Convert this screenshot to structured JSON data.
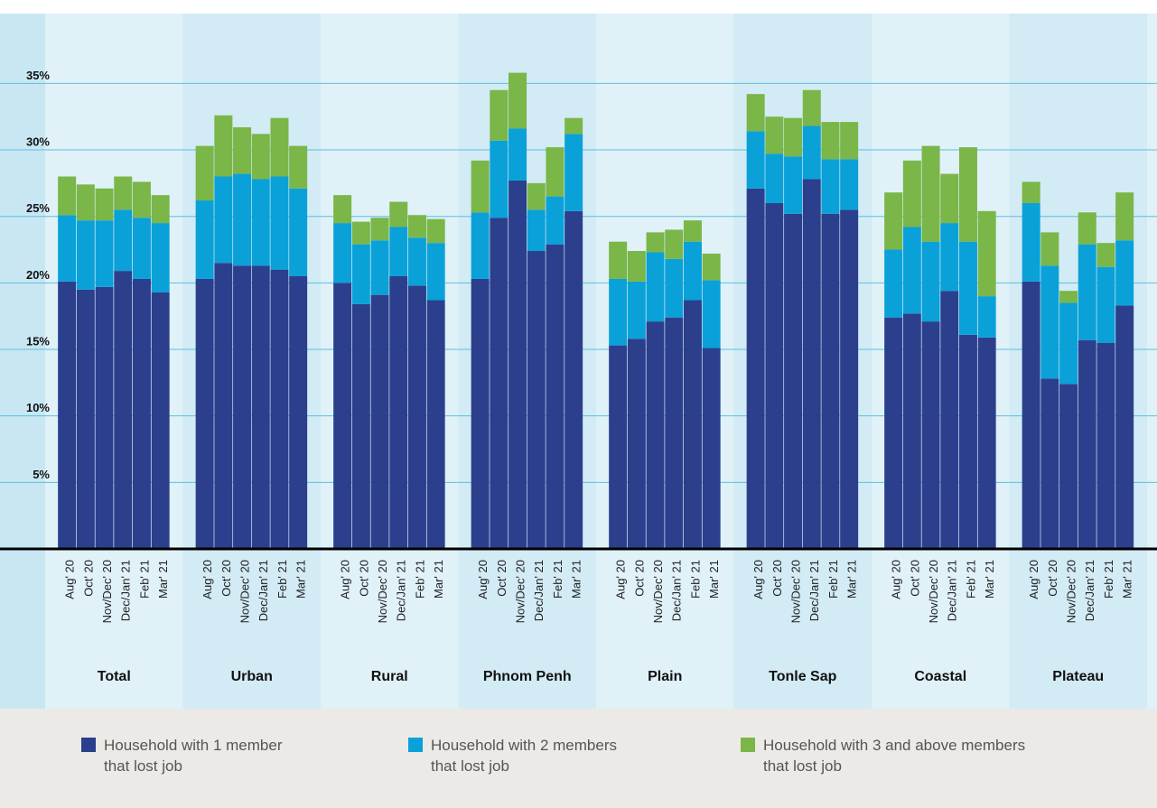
{
  "chart_data": {
    "type": "grouped-stacked-bar",
    "categories": [
      "Total",
      "Urban",
      "Rural",
      "Phnom Penh",
      "Plain",
      "Tonle Sap",
      "Coastal",
      "Plateau"
    ],
    "periods": [
      "Aug' 20",
      "Oct' 20",
      "Nov/Dec' 20",
      "Dec/Jan' 21",
      "Feb' 21",
      "Mar' 21"
    ],
    "series": [
      {
        "name": "Household with 1 member that lost job",
        "color": "#2b3f8c",
        "values": [
          [
            20.1,
            19.5,
            19.7,
            20.9,
            20.3,
            19.3
          ],
          [
            20.3,
            21.5,
            21.3,
            21.3,
            21.0,
            20.5
          ],
          [
            20.0,
            18.4,
            19.1,
            20.5,
            19.8,
            18.7
          ],
          [
            20.3,
            24.9,
            27.7,
            22.4,
            22.9,
            25.4
          ],
          [
            15.3,
            15.8,
            17.1,
            17.4,
            18.7,
            15.1
          ],
          [
            27.1,
            26.0,
            25.2,
            27.8,
            25.2,
            25.5
          ],
          [
            17.4,
            17.7,
            17.1,
            19.4,
            16.1,
            15.9
          ],
          [
            20.1,
            12.8,
            12.4,
            15.7,
            15.5,
            18.3
          ]
        ]
      },
      {
        "name": "Household with 2 members that lost job",
        "color": "#0aa1d9",
        "values": [
          [
            5.0,
            5.2,
            5.0,
            4.6,
            4.6,
            5.2
          ],
          [
            5.9,
            6.5,
            6.9,
            6.5,
            7.0,
            6.6
          ],
          [
            4.5,
            4.5,
            4.1,
            3.7,
            3.6,
            4.3
          ],
          [
            5.0,
            5.8,
            3.9,
            3.1,
            3.6,
            5.8
          ],
          [
            5.0,
            4.3,
            5.2,
            4.4,
            4.4,
            5.1
          ],
          [
            4.3,
            3.7,
            4.3,
            4.0,
            4.1,
            3.8
          ],
          [
            5.1,
            6.5,
            6.0,
            5.1,
            7.0,
            3.1
          ],
          [
            5.9,
            8.5,
            6.1,
            7.2,
            5.7,
            4.9
          ]
        ]
      },
      {
        "name": "Household with 3 and above members that lost job",
        "color": "#7ab648",
        "values": [
          [
            2.9,
            2.7,
            2.4,
            2.5,
            2.7,
            2.1
          ],
          [
            4.1,
            4.6,
            3.5,
            3.4,
            4.4,
            3.2
          ],
          [
            2.1,
            1.7,
            1.7,
            1.9,
            1.7,
            1.8
          ],
          [
            3.9,
            3.8,
            4.2,
            2.0,
            3.7,
            1.2
          ],
          [
            2.8,
            2.3,
            1.5,
            2.2,
            1.6,
            2.0
          ],
          [
            2.8,
            2.8,
            2.9,
            2.7,
            2.8,
            2.8
          ],
          [
            4.3,
            5.0,
            7.2,
            3.7,
            7.1,
            6.4
          ],
          [
            1.6,
            2.5,
            0.9,
            2.4,
            1.8,
            3.6
          ]
        ]
      }
    ],
    "ylim": [
      0,
      41
    ],
    "yticks": [
      {
        "value": 5,
        "label": "5%"
      },
      {
        "value": 10,
        "label": "10%"
      },
      {
        "value": 15,
        "label": "15%"
      },
      {
        "value": 20,
        "label": "20%"
      },
      {
        "value": 25,
        "label": "25%"
      },
      {
        "value": 30,
        "label": "30%"
      },
      {
        "value": 35,
        "label": "35%"
      }
    ],
    "grid": true
  }
}
